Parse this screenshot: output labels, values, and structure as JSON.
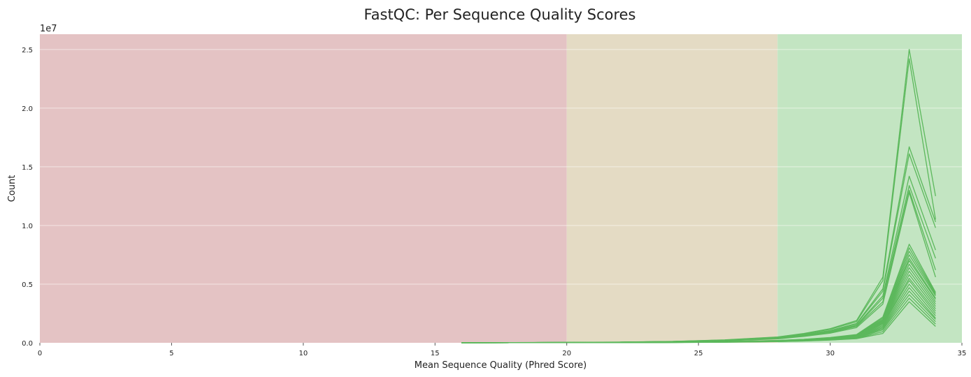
{
  "chart_data": {
    "type": "line",
    "title": "FastQC: Per Sequence Quality Scores",
    "xlabel": "Mean Sequence Quality (Phred Score)",
    "ylabel": "Count",
    "y_offset_label": "1e7",
    "xlim": [
      0,
      35
    ],
    "ylim": [
      0,
      26300000
    ],
    "xticks": [
      0,
      5,
      10,
      15,
      20,
      25,
      30,
      35
    ],
    "xtick_labels": [
      "0",
      "5",
      "10",
      "15",
      "20",
      "25",
      "30",
      "35"
    ],
    "yticks": [
      0,
      5000000,
      10000000,
      15000000,
      20000000,
      25000000
    ],
    "ytick_labels": [
      "0.0",
      "0.5",
      "1.0",
      "1.5",
      "2.0",
      "2.5"
    ],
    "grid": true,
    "zones": [
      {
        "from": 0,
        "to": 20,
        "color": "#e4c3c4",
        "label": "fail"
      },
      {
        "from": 20,
        "to": 28,
        "color": "#e4dbc4",
        "label": "warn"
      },
      {
        "from": 28,
        "to": 35,
        "color": "#c3e5c2",
        "label": "pass"
      }
    ],
    "line_color": "#5cb85c",
    "x": [
      16,
      18,
      20,
      22,
      24,
      26,
      28,
      29,
      30,
      31,
      32,
      33,
      34
    ],
    "series": [
      {
        "values": [
          5000,
          15000,
          40000,
          60000,
          120000,
          250000,
          500000,
          800000,
          1200000,
          1900000,
          5600000,
          25000000,
          12500000
        ]
      },
      {
        "values": [
          5000,
          15000,
          38000,
          58000,
          115000,
          240000,
          480000,
          760000,
          1150000,
          1800000,
          5300000,
          24200000,
          10500000
        ]
      },
      {
        "values": [
          4000,
          12000,
          35000,
          55000,
          110000,
          220000,
          430000,
          700000,
          1050000,
          1650000,
          4600000,
          16700000,
          10300000
        ]
      },
      {
        "values": [
          4000,
          12000,
          34000,
          53000,
          105000,
          210000,
          410000,
          680000,
          1000000,
          1600000,
          4400000,
          16100000,
          9800000
        ]
      },
      {
        "values": [
          3500,
          11000,
          32000,
          50000,
          100000,
          200000,
          390000,
          640000,
          950000,
          1500000,
          4000000,
          14200000,
          7900000
        ]
      },
      {
        "values": [
          3500,
          11000,
          31000,
          48000,
          95000,
          190000,
          370000,
          610000,
          900000,
          1450000,
          3800000,
          13400000,
          7200000
        ]
      },
      {
        "values": [
          3000,
          10000,
          30000,
          46000,
          90000,
          180000,
          350000,
          580000,
          860000,
          1400000,
          3500000,
          13000000,
          6200000
        ]
      },
      {
        "values": [
          3000,
          9000,
          28000,
          44000,
          85000,
          170000,
          330000,
          550000,
          820000,
          1300000,
          3300000,
          12800000,
          5600000
        ]
      },
      {
        "values": [
          2000,
          6000,
          18000,
          28000,
          55000,
          110000,
          200000,
          300000,
          450000,
          700000,
          2200000,
          8400000,
          4300000
        ]
      },
      {
        "values": [
          2000,
          6000,
          17000,
          27000,
          52000,
          105000,
          190000,
          290000,
          430000,
          670000,
          2100000,
          8100000,
          4200000
        ]
      },
      {
        "values": [
          2000,
          5500,
          16000,
          26000,
          50000,
          100000,
          185000,
          280000,
          420000,
          650000,
          2000000,
          7800000,
          4100000
        ]
      },
      {
        "values": [
          1800,
          5500,
          16000,
          25000,
          48000,
          96000,
          180000,
          270000,
          400000,
          630000,
          1950000,
          7500000,
          4000000
        ]
      },
      {
        "values": [
          1800,
          5000,
          15000,
          24000,
          46000,
          92000,
          175000,
          260000,
          390000,
          610000,
          1900000,
          7200000,
          3800000
        ]
      },
      {
        "values": [
          1700,
          5000,
          15000,
          23000,
          44000,
          88000,
          170000,
          250000,
          380000,
          590000,
          1850000,
          7000000,
          3700000
        ]
      },
      {
        "values": [
          1700,
          4800,
          14000,
          22000,
          42000,
          85000,
          165000,
          245000,
          370000,
          570000,
          1800000,
          6700000,
          3500000
        ]
      },
      {
        "values": [
          1600,
          4600,
          14000,
          21000,
          40000,
          82000,
          160000,
          240000,
          360000,
          550000,
          1750000,
          6400000,
          3300000
        ]
      },
      {
        "values": [
          1600,
          4500,
          13000,
          20000,
          38000,
          80000,
          155000,
          230000,
          350000,
          540000,
          1700000,
          6100000,
          3100000
        ]
      },
      {
        "values": [
          1500,
          4400,
          13000,
          20000,
          37000,
          77000,
          150000,
          225000,
          340000,
          520000,
          1650000,
          5800000,
          2900000
        ]
      },
      {
        "values": [
          1500,
          4200,
          12000,
          19000,
          36000,
          74000,
          145000,
          220000,
          330000,
          500000,
          1600000,
          5500000,
          2700000
        ]
      },
      {
        "values": [
          1400,
          4000,
          12000,
          18000,
          34000,
          70000,
          140000,
          210000,
          315000,
          480000,
          1500000,
          5300000,
          2500000
        ]
      },
      {
        "values": [
          1400,
          3900,
          11000,
          17000,
          33000,
          67000,
          135000,
          200000,
          300000,
          460000,
          1400000,
          5000000,
          2300000
        ]
      },
      {
        "values": [
          1300,
          3700,
          11000,
          16000,
          31000,
          63000,
          125000,
          190000,
          290000,
          440000,
          1300000,
          4700000,
          2100000
        ]
      },
      {
        "values": [
          1300,
          3600,
          10000,
          15000,
          30000,
          60000,
          120000,
          180000,
          275000,
          420000,
          1200000,
          4400000,
          2000000
        ]
      },
      {
        "values": [
          1200,
          3400,
          10000,
          15000,
          28000,
          57000,
          115000,
          170000,
          260000,
          400000,
          1100000,
          4100000,
          1800000
        ]
      },
      {
        "values": [
          1100,
          3200,
          9000,
          14000,
          26000,
          53000,
          105000,
          160000,
          245000,
          370000,
          950000,
          3800000,
          1600000
        ]
      },
      {
        "values": [
          1000,
          3000,
          8000,
          13000,
          24000,
          50000,
          100000,
          150000,
          230000,
          350000,
          800000,
          3500000,
          1400000
        ]
      }
    ]
  }
}
